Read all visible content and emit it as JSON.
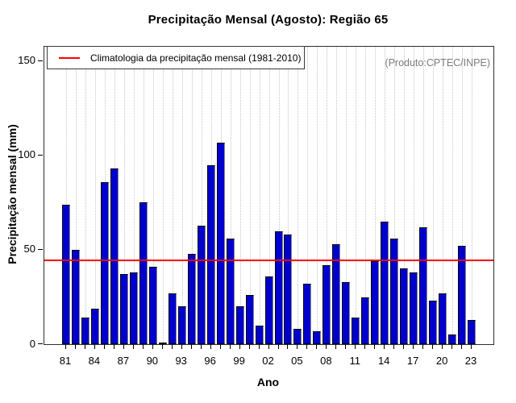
{
  "chart_data": {
    "type": "bar",
    "title": "Precipitação Mensal (Agosto): Região 65",
    "xlabel": "Ano",
    "ylabel": "Precipitação mensal (mm)",
    "legend_label": "Climatologia da precipitação mensal (1981-2010)",
    "annotation": "(Produto:CPTEC/INPE)",
    "categories": [
      "81",
      "82",
      "83",
      "84",
      "85",
      "86",
      "87",
      "88",
      "89",
      "90",
      "91",
      "92",
      "93",
      "94",
      "95",
      "96",
      "97",
      "98",
      "99",
      "00",
      "01",
      "02",
      "03",
      "04",
      "05",
      "06",
      "07",
      "08",
      "09",
      "10",
      "11",
      "12",
      "13",
      "14",
      "15",
      "16",
      "17",
      "18",
      "19",
      "20",
      "21",
      "22",
      "23"
    ],
    "values": [
      74,
      50,
      14,
      19,
      86,
      93,
      37,
      38,
      75,
      41,
      0.5,
      27,
      20,
      48,
      63,
      95,
      107,
      56,
      20,
      26,
      10,
      36,
      60,
      58,
      8,
      32,
      7,
      42,
      53,
      33,
      14,
      25,
      44,
      65,
      56,
      40,
      38,
      62,
      23,
      27,
      5,
      52,
      13
    ],
    "climatology_mean": 44.3,
    "yticks": [
      0,
      50,
      100,
      150
    ],
    "ylim": [
      0,
      157.6
    ],
    "xtick_label_every": 3,
    "grid": true,
    "legend_position": "top-left",
    "colors": {
      "bar": "#0000CD",
      "climatology_line": "#FF0000",
      "grid": "#C6C6C6",
      "annotation_text": "#7C7C7C",
      "axis": "#000000"
    }
  }
}
